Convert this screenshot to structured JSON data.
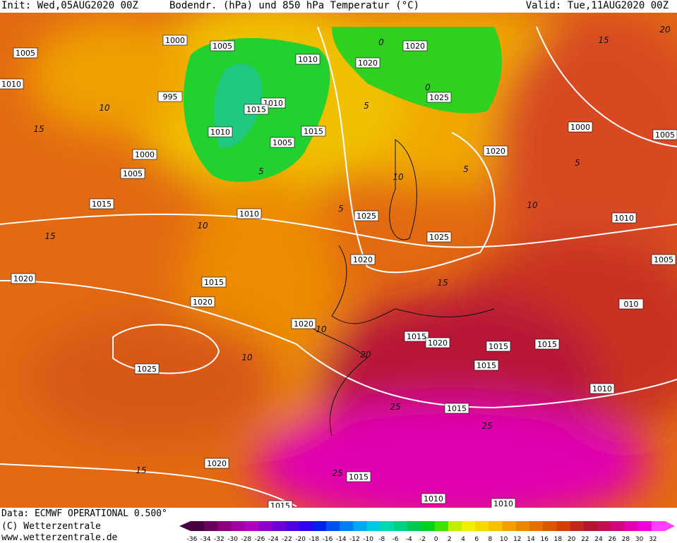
{
  "header": {
    "init": "Init: Wed,05AUG2020 00Z",
    "title": "Bodendr. (hPa) und 850 hPa Temperatur (°C)",
    "valid": "Valid: Tue,11AUG2020 00Z"
  },
  "map": {
    "isobar_labels": [
      "1000",
      "1005",
      "1005",
      "1010",
      "1020",
      "1020",
      "1010",
      "995",
      "1010",
      "1015",
      "1025",
      "1010",
      "1015",
      "1005",
      "1000",
      "1005",
      "1000",
      "1020",
      "1005",
      "1015",
      "1010",
      "1025",
      "1025",
      "1010",
      "1020",
      "1005",
      "1020",
      "1015",
      "1020",
      "010",
      "1020",
      "1015",
      "1020",
      "1015",
      "1015",
      "1015",
      "1025",
      "1010",
      "1015",
      "1020",
      "1015",
      "1010",
      "1010",
      "1015"
    ],
    "temperature_labels": [
      "10",
      "15",
      "5",
      "10",
      "15",
      "10",
      "15",
      "10",
      "10",
      "20",
      "25",
      "25",
      "15",
      "25",
      "20",
      "15",
      "5",
      "10",
      "0",
      "0",
      "5",
      "5",
      "5"
    ]
  },
  "footer": {
    "data": "Data: ECMWF OPERATIONAL 0.500°",
    "copyright": "(C) Wetterzentrale",
    "url": "www.wetterzentrale.de"
  },
  "legend": {
    "ticks": [
      -36,
      -34,
      -32,
      -30,
      -28,
      -26,
      -24,
      -22,
      -20,
      -18,
      -16,
      -14,
      -12,
      -10,
      -8,
      -6,
      -4,
      -2,
      0,
      2,
      4,
      6,
      8,
      10,
      12,
      14,
      16,
      18,
      20,
      22,
      24,
      26,
      28,
      30,
      32
    ],
    "colors": [
      "#4a0040",
      "#6a0060",
      "#8a0080",
      "#a000a0",
      "#b000c0",
      "#9000c8",
      "#7000d0",
      "#5000e0",
      "#3000f0",
      "#0020f0",
      "#0050f0",
      "#0080f0",
      "#00a8f0",
      "#00c8e0",
      "#00d8b0",
      "#00d080",
      "#00c850",
      "#00d020",
      "#40e000",
      "#c0f000",
      "#f0f000",
      "#f8d800",
      "#f8c000",
      "#f0a000",
      "#e88800",
      "#e07000",
      "#d85800",
      "#d04000",
      "#c02820",
      "#b01830",
      "#c01050",
      "#d00880",
      "#e000b0",
      "#f000d8",
      "#ff40ff"
    ]
  }
}
